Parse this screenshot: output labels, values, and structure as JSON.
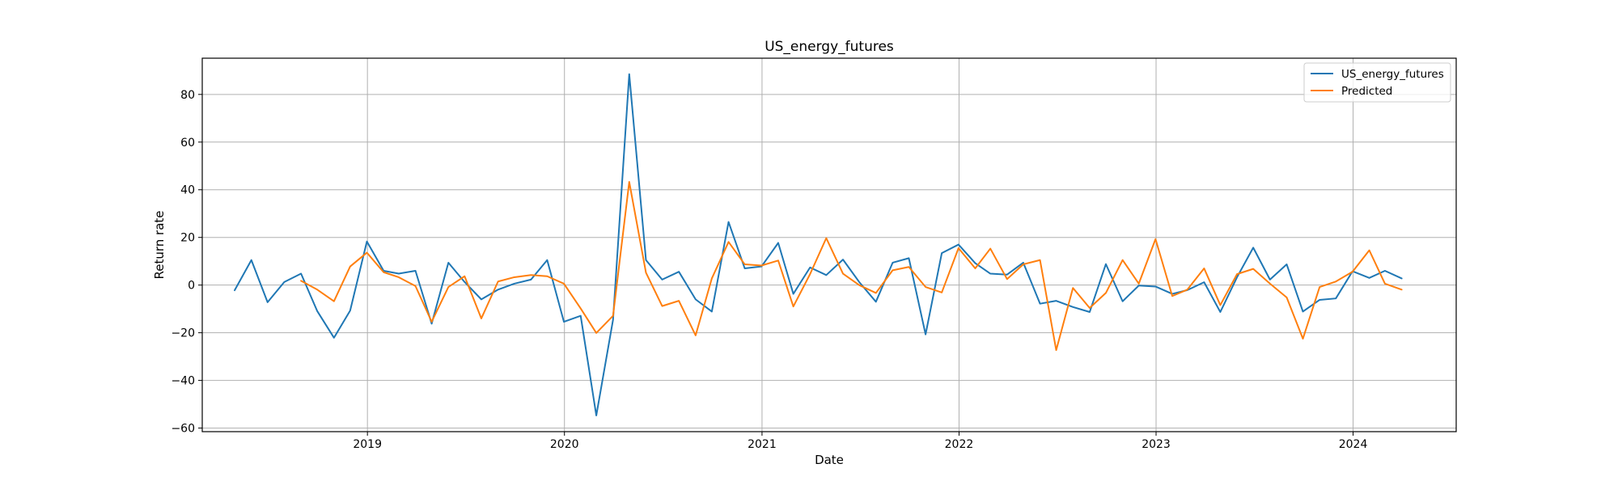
{
  "chart_data": {
    "type": "line",
    "title": "US_energy_futures",
    "xlabel": "Date",
    "ylabel": "Return rate",
    "x_tick_labels": [
      "2019",
      "2020",
      "2021",
      "2022",
      "2023",
      "2024"
    ],
    "y_tick_labels": [
      "−60",
      "−40",
      "−20",
      "0",
      "20",
      "40",
      "60",
      "80"
    ],
    "x_range": [
      "2018-03-01",
      "2024-07-10"
    ],
    "ylim": [
      -61.5,
      95.2
    ],
    "grid": true,
    "legend_position": "top-right",
    "series": [
      {
        "name": "US_energy_futures",
        "color": "#1f77b4",
        "x": [
          "2018-04-30",
          "2018-05-31",
          "2018-06-30",
          "2018-07-31",
          "2018-08-31",
          "2018-09-30",
          "2018-10-31",
          "2018-11-30",
          "2018-12-31",
          "2019-01-31",
          "2019-02-28",
          "2019-03-31",
          "2019-04-30",
          "2019-05-31",
          "2019-06-30",
          "2019-07-31",
          "2019-08-31",
          "2019-09-30",
          "2019-10-31",
          "2019-11-30",
          "2019-12-31",
          "2020-01-31",
          "2020-02-29",
          "2020-03-31",
          "2020-04-30",
          "2020-05-31",
          "2020-06-30",
          "2020-07-31",
          "2020-08-31",
          "2020-09-30",
          "2020-10-31",
          "2020-11-30",
          "2020-12-31",
          "2021-01-31",
          "2021-02-28",
          "2021-03-31",
          "2021-04-30",
          "2021-05-31",
          "2021-06-30",
          "2021-07-31",
          "2021-08-31",
          "2021-09-30",
          "2021-10-31",
          "2021-11-30",
          "2021-12-31",
          "2022-01-31",
          "2022-02-28",
          "2022-03-31",
          "2022-04-30",
          "2022-05-31",
          "2022-06-30",
          "2022-07-31",
          "2022-08-31",
          "2022-09-30",
          "2022-10-31",
          "2022-11-30",
          "2022-12-31",
          "2023-01-31",
          "2023-02-28",
          "2023-03-31",
          "2023-04-30",
          "2023-05-31",
          "2023-06-30",
          "2023-07-31",
          "2023-08-31",
          "2023-09-30",
          "2023-10-31",
          "2023-11-30",
          "2023-12-31",
          "2024-01-31",
          "2024-02-29",
          "2024-03-31"
        ],
        "values": [
          -2.2,
          10.5,
          -7.2,
          1.3,
          4.8,
          -10.9,
          -22.1,
          -10.7,
          18.3,
          6.0,
          4.8,
          6.0,
          -16.2,
          9.4,
          1.3,
          -6.0,
          -1.9,
          0.6,
          2.3,
          10.5,
          -15.4,
          -12.9,
          -54.7,
          -14.6,
          88.5,
          10.5,
          2.3,
          5.6,
          -6.0,
          -11.1,
          26.5,
          7.0,
          7.8,
          17.7,
          -3.7,
          7.4,
          4.2,
          10.7,
          1.3,
          -7.0,
          9.4,
          11.3,
          -20.7,
          13.4,
          17.0,
          9.2,
          4.8,
          4.4,
          9.4,
          -7.8,
          -6.6,
          -9.2,
          -11.3,
          8.8,
          -6.8,
          -0.2,
          -0.6,
          -3.7,
          -2.1,
          1.2,
          -11.3,
          3.3,
          15.7,
          2.3,
          8.7,
          -11.1,
          -6.2,
          -5.6,
          5.8,
          3.0,
          6.0,
          2.8
        ]
      },
      {
        "name": "Predicted",
        "color": "#ff7f0e",
        "x": [
          "2018-08-31",
          "2018-09-30",
          "2018-10-31",
          "2018-11-30",
          "2018-12-31",
          "2019-01-31",
          "2019-02-28",
          "2019-03-31",
          "2019-04-30",
          "2019-05-31",
          "2019-06-30",
          "2019-07-31",
          "2019-08-31",
          "2019-09-30",
          "2019-10-31",
          "2019-11-30",
          "2019-12-31",
          "2020-01-31",
          "2020-02-29",
          "2020-03-31",
          "2020-04-30",
          "2020-05-31",
          "2020-06-30",
          "2020-07-31",
          "2020-08-31",
          "2020-09-30",
          "2020-10-31",
          "2020-11-30",
          "2020-12-31",
          "2021-01-31",
          "2021-02-28",
          "2021-03-31",
          "2021-04-30",
          "2021-05-31",
          "2021-06-30",
          "2021-07-31",
          "2021-08-31",
          "2021-09-30",
          "2021-10-31",
          "2021-11-30",
          "2021-12-31",
          "2022-01-31",
          "2022-02-28",
          "2022-03-31",
          "2022-04-30",
          "2022-05-31",
          "2022-06-30",
          "2022-07-31",
          "2022-08-31",
          "2022-09-30",
          "2022-10-31",
          "2022-11-30",
          "2022-12-31",
          "2023-01-31",
          "2023-02-28",
          "2023-03-31",
          "2023-04-30",
          "2023-05-31",
          "2023-06-30",
          "2023-07-31",
          "2023-08-31",
          "2023-09-30",
          "2023-10-31",
          "2023-11-30",
          "2023-12-31",
          "2024-01-31",
          "2024-02-29",
          "2024-03-31"
        ],
        "values": [
          1.8,
          -1.9,
          -6.8,
          7.8,
          13.6,
          5.4,
          3.3,
          -0.4,
          -15.4,
          -0.8,
          3.7,
          -14.0,
          1.5,
          3.3,
          4.2,
          3.7,
          0.6,
          -9.8,
          -20.1,
          -12.9,
          43.3,
          5.2,
          -8.8,
          -6.6,
          -21.1,
          2.8,
          18.1,
          8.7,
          8.2,
          10.3,
          -9.0,
          4.6,
          19.7,
          4.8,
          0.0,
          -3.3,
          6.2,
          7.6,
          -0.8,
          -3.1,
          15.5,
          7.0,
          15.3,
          2.5,
          8.7,
          10.5,
          -27.3,
          -1.2,
          -9.6,
          -3.3,
          10.5,
          0.6,
          19.3,
          -4.6,
          -1.9,
          7.0,
          -8.4,
          4.6,
          6.8,
          0.6,
          -5.2,
          -22.5,
          -0.8,
          1.5,
          5.6,
          14.6,
          0.6,
          -1.9
        ]
      }
    ]
  }
}
